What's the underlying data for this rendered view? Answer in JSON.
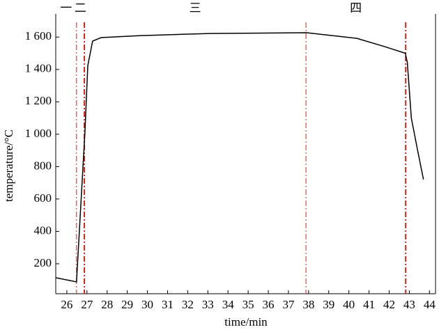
{
  "chart_data": {
    "type": "line",
    "xlabel": "time/min",
    "ylabel": "temperature/°C",
    "x": [
      25.45,
      26.48,
      26.9,
      27.04,
      27.28,
      27.7,
      29.6,
      33.1,
      37.9,
      40.4,
      41.8,
      42.8,
      42.9,
      43.1,
      43.4,
      43.7
    ],
    "values": [
      114,
      88,
      1015,
      1424,
      1575,
      1597,
      1609,
      1622,
      1627,
      1592,
      1540,
      1500,
      1445,
      1100,
      907,
      721
    ],
    "color": "#000000",
    "xlim": [
      25.45,
      44.3
    ],
    "ylim": [
      15,
      1700
    ],
    "xticks": [
      26,
      27,
      28,
      29,
      30,
      31,
      32,
      33,
      34,
      35,
      36,
      37,
      38,
      39,
      40,
      41,
      42,
      43,
      44
    ],
    "yticks": [
      200,
      400,
      600,
      800,
      {
        "value": 1000,
        "label": "1 000"
      },
      {
        "value": 1200,
        "label": "1 200"
      },
      {
        "value": 1400,
        "label": "1 400"
      },
      {
        "value": 1600,
        "label": "1 600"
      }
    ],
    "vlines": [
      26.48,
      26.87,
      37.87,
      42.82
    ],
    "vline_color": "#e0201a",
    "stages": [
      "一",
      "二",
      "三",
      "四"
    ]
  }
}
